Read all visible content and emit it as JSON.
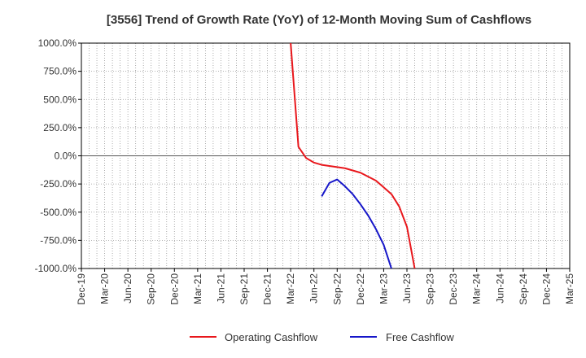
{
  "chart_data": {
    "type": "line",
    "title": "[3556]  Trend of Growth Rate (YoY) of 12-Month Moving Sum of Cashflows",
    "xlabel": "",
    "ylabel": "",
    "x_tick_labels": [
      "Dec-19",
      "Mar-20",
      "Jun-20",
      "Sep-20",
      "Dec-20",
      "Mar-21",
      "Jun-21",
      "Sep-21",
      "Dec-21",
      "Mar-22",
      "Jun-22",
      "Sep-22",
      "Dec-22",
      "Mar-23",
      "Jun-23",
      "Sep-23",
      "Dec-23",
      "Mar-24",
      "Jun-24",
      "Sep-24",
      "Dec-24",
      "Mar-25"
    ],
    "y_tick_labels": [
      "1000.0%",
      "750.0%",
      "500.0%",
      "250.0%",
      "0.0%",
      "-250.0%",
      "-500.0%",
      "-750.0%",
      "-1000.0%"
    ],
    "y_ticks": [
      1000,
      750,
      500,
      250,
      0,
      -250,
      -500,
      -750,
      -1000
    ],
    "ylim": [
      -1000,
      1000
    ],
    "x_range_months": [
      0,
      63
    ],
    "grid": true,
    "legend_position": "bottom-center",
    "series": [
      {
        "name": "Operating Cashflow",
        "color": "#e8171c",
        "points": [
          {
            "x": "Mar-22",
            "y": 1000
          },
          {
            "x": "Apr-22",
            "y": 80
          },
          {
            "x": "May-22",
            "y": -20
          },
          {
            "x": "Jun-22",
            "y": -60
          },
          {
            "x": "Jul-22",
            "y": -80
          },
          {
            "x": "Aug-22",
            "y": -90
          },
          {
            "x": "Sep-22",
            "y": -100
          },
          {
            "x": "Oct-22",
            "y": -110
          },
          {
            "x": "Nov-22",
            "y": -130
          },
          {
            "x": "Dec-22",
            "y": -150
          },
          {
            "x": "Jan-23",
            "y": -185
          },
          {
            "x": "Feb-23",
            "y": -220
          },
          {
            "x": "Mar-23",
            "y": -280
          },
          {
            "x": "Apr-23",
            "y": -340
          },
          {
            "x": "May-23",
            "y": -450
          },
          {
            "x": "Jun-23",
            "y": -630
          },
          {
            "x": "Jul-23",
            "y": -1000
          }
        ]
      },
      {
        "name": "Free Cashflow",
        "color": "#1616c9",
        "points": [
          {
            "x": "Jul-22",
            "y": -360
          },
          {
            "x": "Aug-22",
            "y": -240
          },
          {
            "x": "Sep-22",
            "y": -210
          },
          {
            "x": "Oct-22",
            "y": -270
          },
          {
            "x": "Nov-22",
            "y": -340
          },
          {
            "x": "Dec-22",
            "y": -430
          },
          {
            "x": "Jan-23",
            "y": -530
          },
          {
            "x": "Feb-23",
            "y": -650
          },
          {
            "x": "Mar-23",
            "y": -790
          },
          {
            "x": "Apr-23",
            "y": -1000
          }
        ]
      }
    ]
  }
}
